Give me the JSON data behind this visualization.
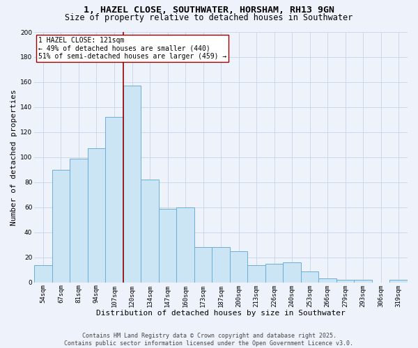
{
  "title_line1": "1, HAZEL CLOSE, SOUTHWATER, HORSHAM, RH13 9GN",
  "title_line2": "Size of property relative to detached houses in Southwater",
  "xlabel": "Distribution of detached houses by size in Southwater",
  "ylabel": "Number of detached properties",
  "categories": [
    "54sqm",
    "67sqm",
    "81sqm",
    "94sqm",
    "107sqm",
    "120sqm",
    "134sqm",
    "147sqm",
    "160sqm",
    "173sqm",
    "187sqm",
    "200sqm",
    "213sqm",
    "226sqm",
    "240sqm",
    "253sqm",
    "266sqm",
    "279sqm",
    "293sqm",
    "306sqm",
    "319sqm"
  ],
  "values": [
    14,
    90,
    99,
    107,
    132,
    157,
    82,
    59,
    60,
    28,
    28,
    25,
    14,
    15,
    16,
    9,
    3,
    2,
    2,
    0,
    2
  ],
  "bar_color": "#cce5f5",
  "bar_edge_color": "#6baed6",
  "vline_index": 5,
  "vline_color": "#990000",
  "annotation_text": "1 HAZEL CLOSE: 121sqm\n← 49% of detached houses are smaller (440)\n51% of semi-detached houses are larger (459) →",
  "annotation_box_facecolor": "#ffffff",
  "annotation_box_edgecolor": "#990000",
  "ylim": [
    0,
    200
  ],
  "yticks": [
    0,
    20,
    40,
    60,
    80,
    100,
    120,
    140,
    160,
    180,
    200
  ],
  "grid_color": "#c8d4e8",
  "background_color": "#eef2fb",
  "footer_text": "Contains HM Land Registry data © Crown copyright and database right 2025.\nContains public sector information licensed under the Open Government Licence v3.0.",
  "title_fontsize": 9.5,
  "subtitle_fontsize": 8.5,
  "axis_label_fontsize": 8,
  "tick_fontsize": 6.5,
  "annotation_fontsize": 7,
  "footer_fontsize": 6
}
